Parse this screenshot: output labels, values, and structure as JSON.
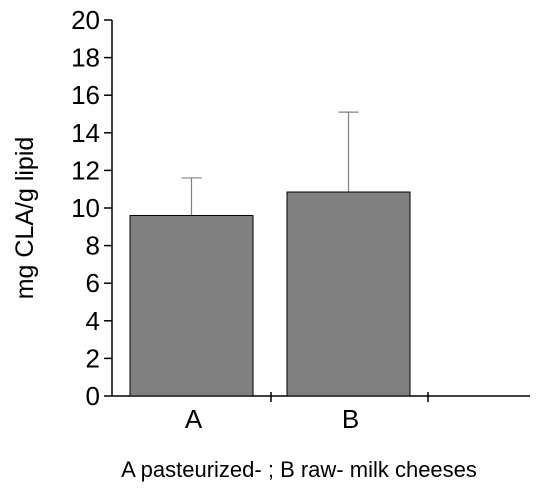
{
  "chart_data": {
    "type": "bar",
    "categories": [
      "A",
      "B"
    ],
    "values": [
      9.6,
      10.85
    ],
    "error_upper": [
      11.6,
      15.1
    ],
    "ylabel": "mg CLA/g lipid",
    "xlabel": "A pasteurized- ; B raw- milk cheeses",
    "ylim": [
      0,
      20
    ],
    "y_ticks": [
      "0",
      "2",
      "4",
      "6",
      "8",
      "10",
      "12",
      "14",
      "16",
      "18",
      "20"
    ],
    "grid": false,
    "colors": {
      "bar": "#808080",
      "error_bar": "#808080",
      "axis": "#000000"
    }
  }
}
